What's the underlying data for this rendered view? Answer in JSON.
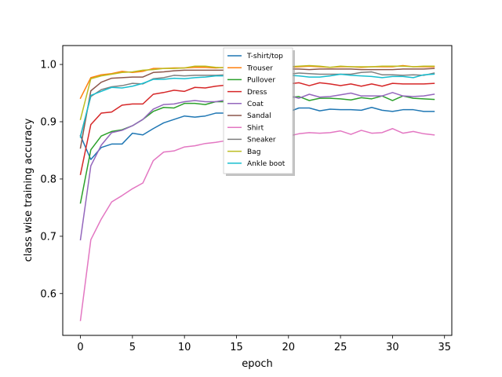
{
  "chart_data": {
    "type": "line",
    "title": "",
    "xlabel": "epoch",
    "ylabel": "class wise training accuracy",
    "xlim": [
      -1.7,
      35.7
    ],
    "ylim": [
      0.527,
      1.033
    ],
    "xticks": [
      0,
      5,
      10,
      15,
      20,
      25,
      30,
      35
    ],
    "yticks": [
      0.6,
      0.7,
      0.8,
      0.9,
      1.0
    ],
    "xtick_labels": [
      "0",
      "5",
      "10",
      "15",
      "20",
      "25",
      "30",
      "35"
    ],
    "ytick_labels": [
      "0.6",
      "0.7",
      "0.8",
      "0.9",
      "1.0"
    ],
    "grid": false,
    "legend_position": "upper-center",
    "x": [
      0,
      1,
      2,
      3,
      4,
      5,
      6,
      7,
      8,
      9,
      10,
      11,
      12,
      13,
      14,
      15,
      16,
      17,
      18,
      19,
      20,
      21,
      22,
      23,
      24,
      25,
      26,
      27,
      28,
      29,
      30,
      31,
      32,
      33,
      34
    ],
    "series": [
      {
        "name": "T-shirt/top",
        "color": "#1f77b4",
        "values": [
          0.876,
          0.834,
          0.855,
          0.861,
          0.861,
          0.88,
          0.877,
          0.888,
          0.898,
          0.904,
          0.91,
          0.908,
          0.91,
          0.915,
          0.915,
          0.916,
          0.917,
          0.917,
          0.917,
          0.917,
          0.917,
          0.924,
          0.924,
          0.919,
          0.922,
          0.921,
          0.921,
          0.92,
          0.925,
          0.92,
          0.918,
          0.921,
          0.921,
          0.918,
          0.918
        ]
      },
      {
        "name": "Trouser",
        "color": "#ff7f0e",
        "values": [
          0.941,
          0.977,
          0.982,
          0.984,
          0.988,
          0.986,
          0.988,
          0.993,
          0.993,
          0.994,
          0.994,
          0.995,
          0.995,
          0.994,
          0.995,
          0.995,
          0.995,
          0.995,
          0.995,
          0.995,
          0.995,
          0.996,
          0.997,
          0.996,
          0.995,
          0.996,
          0.996,
          0.995,
          0.996,
          0.996,
          0.996,
          0.998,
          0.996,
          0.996,
          0.996
        ]
      },
      {
        "name": "Pullover",
        "color": "#2ca02c",
        "values": [
          0.758,
          0.851,
          0.875,
          0.883,
          0.886,
          0.893,
          0.904,
          0.918,
          0.925,
          0.924,
          0.932,
          0.932,
          0.93,
          0.935,
          0.935,
          0.936,
          0.937,
          0.937,
          0.938,
          0.94,
          0.942,
          0.944,
          0.937,
          0.941,
          0.941,
          0.94,
          0.938,
          0.942,
          0.94,
          0.945,
          0.937,
          0.945,
          0.941,
          0.94,
          0.939
        ]
      },
      {
        "name": "Dress",
        "color": "#d62728",
        "values": [
          0.808,
          0.895,
          0.915,
          0.917,
          0.929,
          0.931,
          0.931,
          0.948,
          0.951,
          0.955,
          0.953,
          0.96,
          0.959,
          0.962,
          0.964,
          0.965,
          0.965,
          0.965,
          0.966,
          0.966,
          0.966,
          0.968,
          0.963,
          0.968,
          0.966,
          0.963,
          0.966,
          0.962,
          0.966,
          0.962,
          0.967,
          0.966,
          0.966,
          0.966,
          0.967
        ]
      },
      {
        "name": "Coat",
        "color": "#9467bd",
        "values": [
          0.694,
          0.823,
          0.859,
          0.881,
          0.885,
          0.893,
          0.904,
          0.922,
          0.93,
          0.931,
          0.935,
          0.937,
          0.935,
          0.935,
          0.938,
          0.94,
          0.941,
          0.942,
          0.943,
          0.944,
          0.946,
          0.941,
          0.948,
          0.943,
          0.944,
          0.947,
          0.95,
          0.945,
          0.945,
          0.945,
          0.951,
          0.945,
          0.944,
          0.945,
          0.948
        ]
      },
      {
        "name": "Sandal",
        "color": "#8c564b",
        "values": [
          0.854,
          0.954,
          0.969,
          0.976,
          0.977,
          0.978,
          0.978,
          0.986,
          0.987,
          0.989,
          0.99,
          0.99,
          0.99,
          0.99,
          0.99,
          0.991,
          0.991,
          0.991,
          0.991,
          0.991,
          0.992,
          0.992,
          0.991,
          0.992,
          0.992,
          0.992,
          0.992,
          0.991,
          0.991,
          0.991,
          0.991,
          0.992,
          0.992,
          0.992,
          0.993
        ]
      },
      {
        "name": "Shirt",
        "color": "#e377c2",
        "values": [
          0.553,
          0.694,
          0.73,
          0.76,
          0.771,
          0.783,
          0.793,
          0.832,
          0.847,
          0.849,
          0.856,
          0.858,
          0.862,
          0.864,
          0.867,
          0.869,
          0.87,
          0.871,
          0.872,
          0.873,
          0.875,
          0.879,
          0.881,
          0.88,
          0.881,
          0.884,
          0.878,
          0.885,
          0.88,
          0.881,
          0.888,
          0.88,
          0.883,
          0.879,
          0.877
        ]
      },
      {
        "name": "Sneaker",
        "color": "#7f7f7f",
        "values": [
          0.875,
          0.944,
          0.956,
          0.961,
          0.963,
          0.967,
          0.966,
          0.975,
          0.977,
          0.981,
          0.98,
          0.981,
          0.981,
          0.981,
          0.982,
          0.982,
          0.983,
          0.983,
          0.983,
          0.983,
          0.983,
          0.985,
          0.984,
          0.983,
          0.983,
          0.983,
          0.983,
          0.986,
          0.987,
          0.982,
          0.982,
          0.981,
          0.982,
          0.981,
          0.985
        ]
      },
      {
        "name": "Bag",
        "color": "#bcbd22",
        "values": [
          0.904,
          0.975,
          0.98,
          0.983,
          0.986,
          0.987,
          0.99,
          0.991,
          0.993,
          0.993,
          0.994,
          0.997,
          0.997,
          0.995,
          0.994,
          0.995,
          0.995,
          0.995,
          0.996,
          0.996,
          0.996,
          0.997,
          0.998,
          0.997,
          0.995,
          0.997,
          0.996,
          0.996,
          0.996,
          0.997,
          0.997,
          0.997,
          0.996,
          0.997,
          0.997
        ]
      },
      {
        "name": "Ankle boot",
        "color": "#17becf",
        "values": [
          0.873,
          0.946,
          0.953,
          0.96,
          0.959,
          0.962,
          0.967,
          0.974,
          0.974,
          0.976,
          0.975,
          0.977,
          0.978,
          0.98,
          0.98,
          0.981,
          0.981,
          0.981,
          0.981,
          0.981,
          0.981,
          0.98,
          0.978,
          0.978,
          0.98,
          0.983,
          0.981,
          0.98,
          0.979,
          0.977,
          0.979,
          0.979,
          0.977,
          0.982,
          0.983
        ]
      }
    ]
  }
}
